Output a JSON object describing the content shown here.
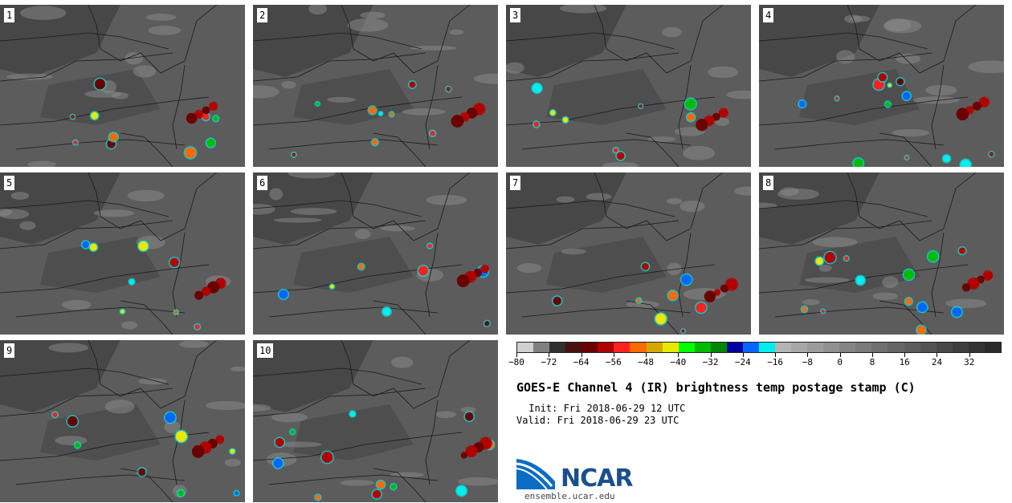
{
  "panels": [
    {
      "label": "1"
    },
    {
      "label": "2"
    },
    {
      "label": "3"
    },
    {
      "label": "4"
    },
    {
      "label": "5"
    },
    {
      "label": "6"
    },
    {
      "label": "7"
    },
    {
      "label": "8"
    },
    {
      "label": "9"
    },
    {
      "label": "10"
    }
  ],
  "colorbar": {
    "colors": [
      "#d0d0d0",
      "#808080",
      "#303030",
      "#4a1010",
      "#6a0000",
      "#b00000",
      "#ff2020",
      "#ff6a00",
      "#d4a800",
      "#e8e800",
      "#00ff00",
      "#00bb00",
      "#008800",
      "#0000a0",
      "#0066ff",
      "#00eeee",
      "#b4b4b4",
      "#a8a8a8",
      "#9c9c9c",
      "#909090",
      "#848484",
      "#7a7a7a",
      "#707070",
      "#666666",
      "#5c5c5c",
      "#525252",
      "#484848",
      "#3e3e3e",
      "#343434",
      "#2a2a2a"
    ],
    "tick_labels": [
      "−80",
      "−72",
      "−64",
      "−56",
      "−48",
      "−40",
      "−32",
      "−24",
      "−16",
      "−8",
      "0",
      "8",
      "16",
      "24",
      "32"
    ]
  },
  "title": "GOES-E Channel 4 (IR) brightness temp postage stamp (C)",
  "init": " Init: Fri 2018-06-29 12 UTC",
  "valid": "Valid: Fri 2018-06-29 23 UTC",
  "logo": {
    "text": "NCAR",
    "url": "ensemble.ucar.edu"
  }
}
